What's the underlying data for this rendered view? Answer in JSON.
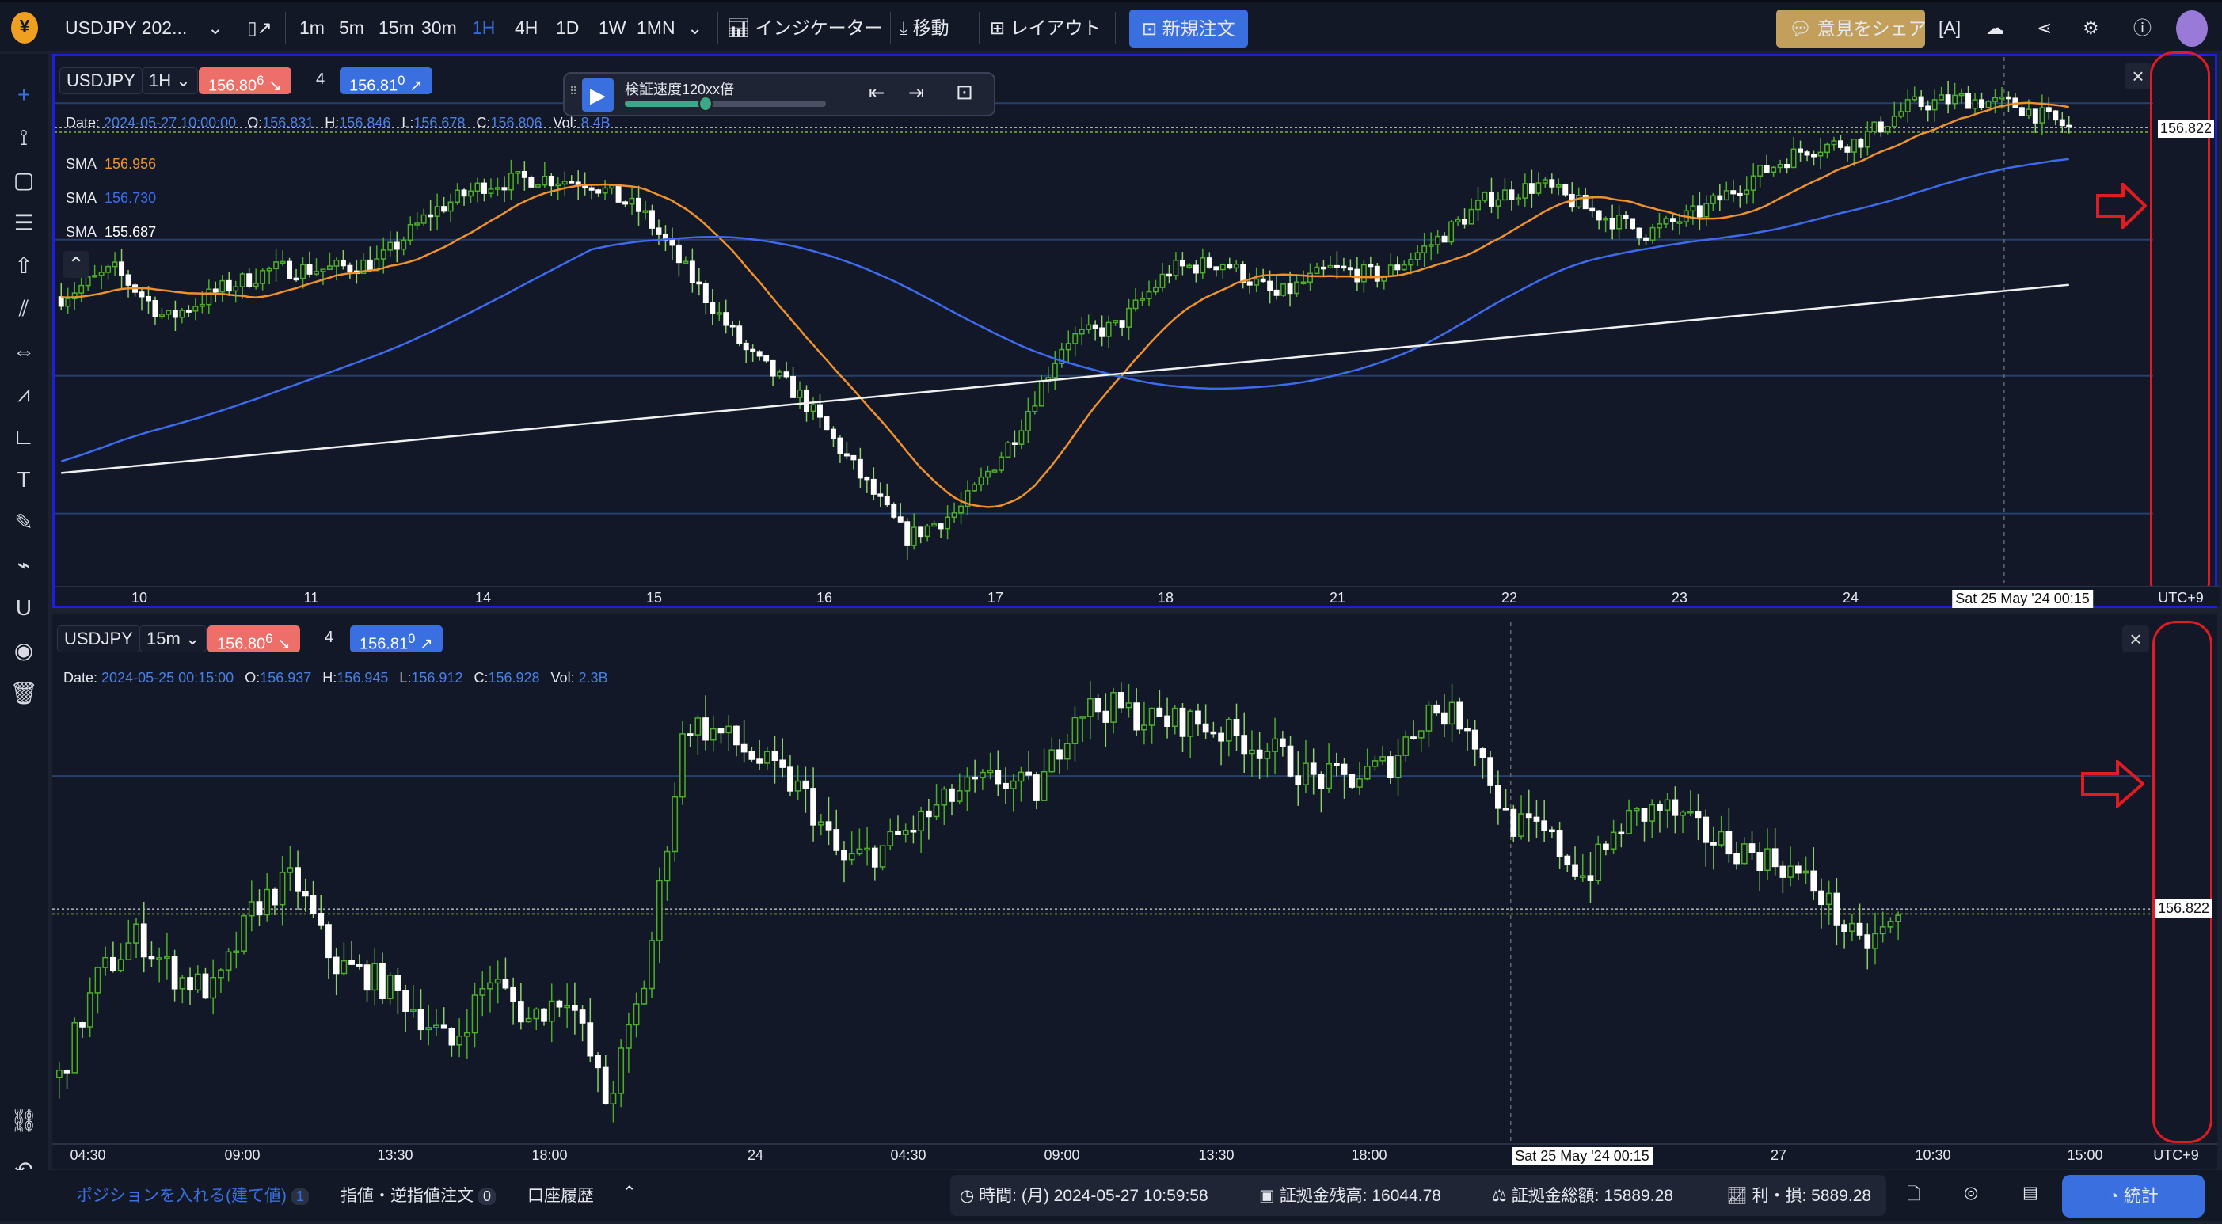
{
  "toolbar": {
    "symbol": "USDJPY 202...",
    "timeframes": [
      "1m",
      "5m",
      "15m",
      "30m",
      "1H",
      "4H",
      "1D",
      "1W",
      "1MN"
    ],
    "active_timeframe": "1H",
    "indicators": "インジケーター",
    "move": "移動",
    "layout": "レイアウト",
    "new_order": "新規注文",
    "share_feedback": "意見をシェア"
  },
  "replay": {
    "speed_label": "検証速度120xx倍",
    "progress": 0.4
  },
  "chart1": {
    "symbol": "USDJPY",
    "timeframe": "1H",
    "bid": "156.80",
    "bid_sup": "6",
    "spread": "4",
    "ask": "156.81",
    "ask_sup": "0",
    "ohlc": {
      "date_label": "Date:",
      "date": "2024-05-27 10:00:00",
      "o_label": "O:",
      "o": "156.831",
      "h_label": "H:",
      "h": "156.846",
      "l_label": "L:",
      "l": "156.678",
      "c_label": "C:",
      "c": "156.806",
      "vol_label": "Vol:",
      "vol": "8.4B"
    },
    "sma": [
      {
        "label": "SMA",
        "value": "156.956",
        "color": "#f0922a"
      },
      {
        "label": "SMA",
        "value": "156.730",
        "color": "#3d6bf0"
      },
      {
        "label": "SMA",
        "value": "155.687",
        "color": "#ffffff"
      }
    ],
    "last_price": "156.822",
    "crosshair_label": "Sat 25 May '24 00:15",
    "timezone": "UTC+9",
    "xticks": [
      "10",
      "11",
      "14",
      "15",
      "16",
      "17",
      "18",
      "21",
      "22",
      "23",
      "24"
    ]
  },
  "chart2": {
    "symbol": "USDJPY",
    "timeframe": "15m",
    "bid": "156.80",
    "bid_sup": "6",
    "spread": "4",
    "ask": "156.81",
    "ask_sup": "0",
    "ohlc": {
      "date_label": "Date:",
      "date": "2024-05-25 00:15:00",
      "o_label": "O:",
      "o": "156.937",
      "h_label": "H:",
      "h": "156.945",
      "l_label": "L:",
      "l": "156.912",
      "c_label": "C:",
      "c": "156.928",
      "vol_label": "Vol:",
      "vol": "2.3B"
    },
    "last_price": "156.822",
    "crosshair_label": "Sat 25 May '24 00:15",
    "timezone": "UTC+9",
    "xticks": [
      "04:30",
      "09:00",
      "13:30",
      "18:00",
      "24",
      "04:30",
      "09:00",
      "13:30",
      "18:00",
      "27",
      "10:30",
      "15:00"
    ]
  },
  "chart_data": [
    {
      "type": "candlestick",
      "title": "USDJPY 1H",
      "ylim": [
        153.51,
        157.33
      ],
      "sma_white_range": [
        154.33,
        155.687
      ],
      "candles": 300,
      "data_extent": 0.96,
      "close_path": [
        155.6,
        155.8,
        155.44,
        155.65,
        155.8,
        155.8,
        155.85,
        156.21,
        156.41,
        156.46,
        156.43,
        156.21,
        155.7,
        155.19,
        154.88,
        154.37,
        153.86,
        154.06,
        154.57,
        155.29,
        155.39,
        155.8,
        155.85,
        155.6,
        155.8,
        155.75,
        156.0,
        156.31,
        156.41,
        156.21,
        156.06,
        156.21,
        156.46,
        156.67,
        156.72,
        156.98,
        157.03,
        156.98,
        156.82
      ]
    },
    {
      "type": "candlestick",
      "title": "USDJPY 15m",
      "ylim": [
        156.68,
        156.996
      ],
      "candles": 240,
      "data_extent": 0.88,
      "close_path": [
        156.72,
        156.781,
        156.806,
        156.781,
        156.772,
        156.824,
        156.841,
        156.789,
        156.781,
        156.764,
        156.738,
        156.781,
        156.755,
        156.772,
        156.703,
        156.781,
        156.936,
        156.927,
        156.91,
        156.893,
        156.85,
        156.858,
        156.875,
        156.893,
        156.901,
        156.893,
        156.944,
        156.944,
        156.936,
        156.936,
        156.927,
        156.918,
        156.901,
        156.901,
        156.91,
        156.944,
        156.936,
        156.875,
        156.867,
        156.841,
        156.875,
        156.884,
        156.867,
        156.858,
        156.85,
        156.832,
        156.798,
        156.815
      ]
    }
  ],
  "bottom": {
    "positions": "ポジションを入れる(建て値)",
    "positions_count": "1",
    "orders": "指値・逆指値注文",
    "orders_count": "0",
    "history": "口座履歴",
    "time": "時間: (月) 2024-05-27 10:59:58",
    "balance": "証拠金残高: 16044.78",
    "equity": "証拠金総額: 15889.28",
    "pnl": "利・損: 5889.28",
    "stats": "統計"
  },
  "colors": {
    "accent": "#3a6fe0",
    "bid": "#ee6e6a",
    "feedback": "#c39f5c",
    "bull": "#4caf2a",
    "bear": "#ffffff",
    "annotation": "#e01b22"
  }
}
